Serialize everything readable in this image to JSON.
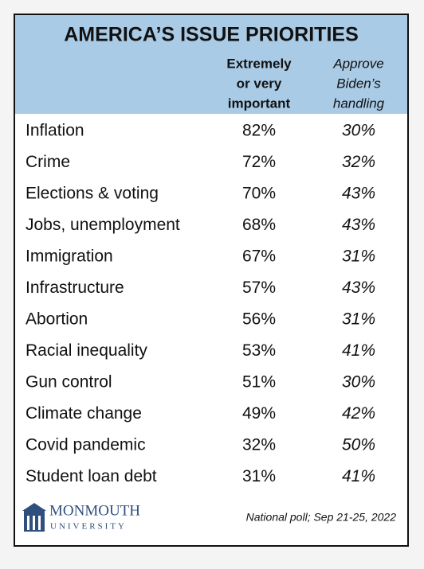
{
  "header": {
    "title": "AMERICA’S ISSUE PRIORITIES",
    "columns": [
      [
        "Extremely",
        "or very",
        "important"
      ],
      [
        "Approve",
        "Biden’s",
        "handling"
      ]
    ]
  },
  "table": {
    "rows": [
      [
        "Inflation",
        "82%",
        "30%"
      ],
      [
        "Crime",
        "72%",
        "32%"
      ],
      [
        "Elections & voting",
        "70%",
        "43%"
      ],
      [
        "Jobs, unemployment",
        "68%",
        "43%"
      ],
      [
        "Immigration",
        "67%",
        "31%"
      ],
      [
        "Infrastructure",
        "57%",
        "43%"
      ],
      [
        "Abortion",
        "56%",
        "31%"
      ],
      [
        "Racial inequality",
        "53%",
        "41%"
      ],
      [
        "Gun control",
        "51%",
        "30%"
      ],
      [
        "Climate change",
        "49%",
        "42%"
      ],
      [
        "Covid pandemic",
        "32%",
        "50%"
      ],
      [
        "Student loan debt",
        "31%",
        "41%"
      ]
    ]
  },
  "footer": {
    "logo": {
      "name": "MONMOUTH",
      "sub": "UNIVERSITY"
    },
    "note": "National poll; Sep 21-25, 2022"
  }
}
